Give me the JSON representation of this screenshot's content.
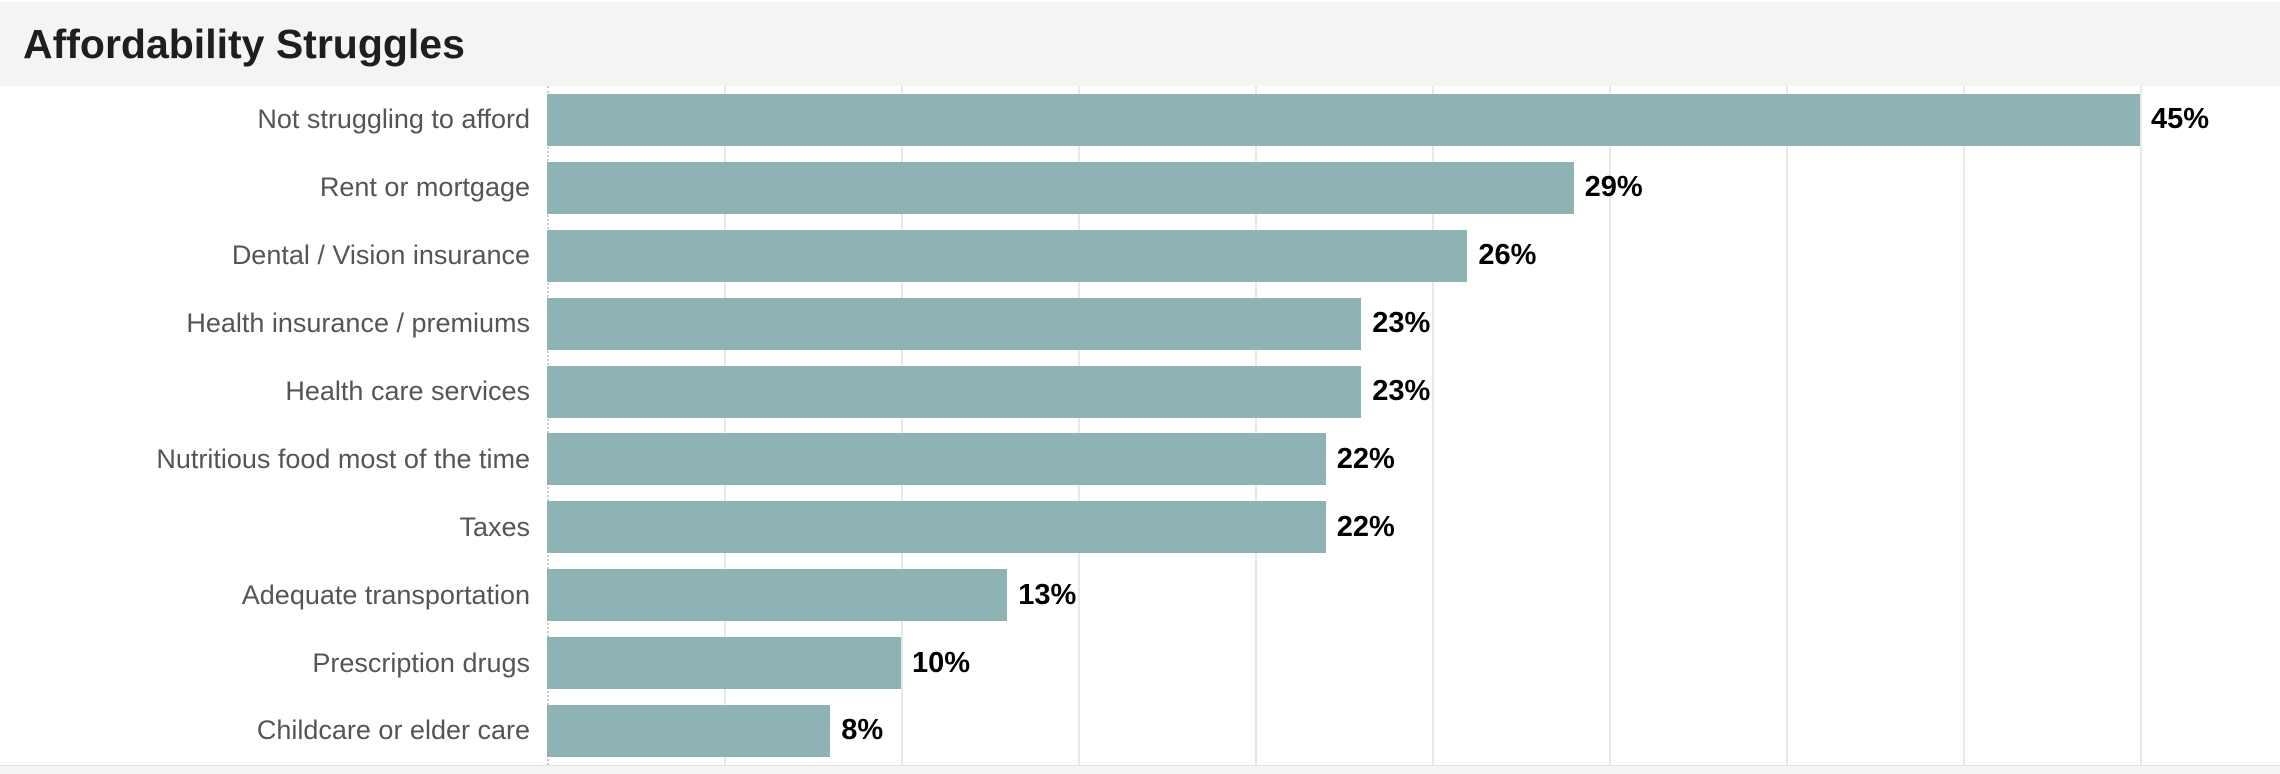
{
  "header": {
    "title": "Affordability Struggles"
  },
  "chart_data": {
    "type": "bar",
    "orientation": "horizontal",
    "title": "Affordability Struggles",
    "xlabel": "",
    "ylabel": "",
    "xlim": [
      0,
      49
    ],
    "grid": true,
    "gridline_interval_percent": 5,
    "legend": "none",
    "categories": [
      "Not struggling to afford",
      "Rent or mortgage",
      "Dental / Vision insurance",
      "Health insurance / premiums",
      "Health care services",
      "Nutritious food most of the time",
      "Taxes",
      "Adequate transportation",
      "Prescription drugs",
      "Childcare or elder care"
    ],
    "values": [
      45,
      29,
      26,
      23,
      23,
      22,
      22,
      13,
      10,
      8
    ],
    "value_labels": [
      "45%",
      "29%",
      "26%",
      "23%",
      "23%",
      "22%",
      "22%",
      "13%",
      "10%",
      "8%"
    ],
    "colors": {
      "bar": "#8db3b4",
      "category_label": "#555555",
      "value_label": "#000000",
      "title": "#1e1e1e",
      "header_background": "#f4f4f4",
      "gridline": "#e8e8e8",
      "zero_line": "#c9c9c9"
    }
  }
}
